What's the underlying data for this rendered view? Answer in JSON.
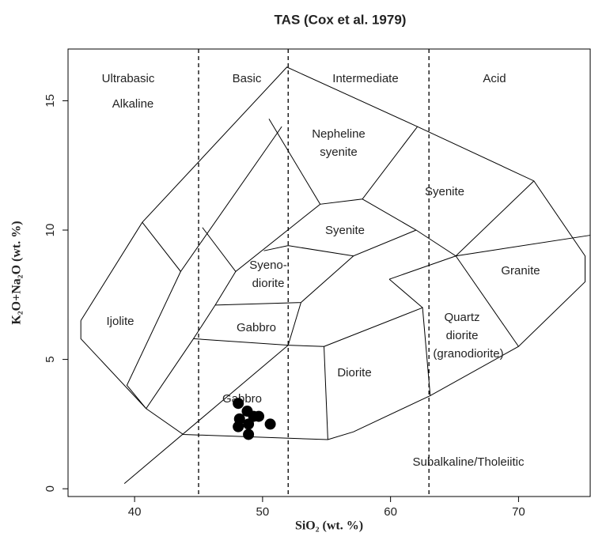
{
  "chart_data": {
    "type": "scatter",
    "title": "TAS (Cox et al. 1979)",
    "xlabel": "SiO₂ (wt. %)",
    "ylabel": "K₂O+Na₂O (wt. %)",
    "xlim": [
      34.8,
      75.6
    ],
    "ylim": [
      -0.3,
      17
    ],
    "xticks": [
      40,
      50,
      60,
      70
    ],
    "yticks": [
      0,
      5,
      10,
      15
    ],
    "color": "#000000",
    "x": [
      48.1,
      48.8,
      49.3,
      48.2,
      48.9,
      49.7,
      50.6,
      48.1,
      48.9
    ],
    "values": [
      3.3,
      3.0,
      2.8,
      2.7,
      2.5,
      2.8,
      2.5,
      2.4,
      2.1
    ],
    "divisions": [
      45,
      52,
      63
    ],
    "boundaries": [
      [
        [
          35.8,
          6.5
        ],
        [
          40.6,
          10.3
        ],
        [
          51.9,
          16.3
        ],
        [
          62.1,
          14.0
        ],
        [
          71.2,
          11.9
        ],
        [
          75.2,
          9.0
        ],
        [
          75.2,
          8.0
        ],
        [
          70.0,
          5.5
        ],
        [
          63.1,
          3.6
        ],
        [
          57.1,
          2.2
        ],
        [
          55.1,
          1.9
        ],
        [
          43.8,
          2.1
        ],
        [
          40.9,
          3.1
        ],
        [
          35.8,
          5.8
        ],
        [
          35.8,
          6.5
        ]
      ],
      [
        [
          40.6,
          10.3
        ],
        [
          43.6,
          8.4
        ],
        [
          51.5,
          14.0
        ]
      ],
      [
        [
          43.6,
          8.4
        ],
        [
          39.4,
          4.0
        ],
        [
          40.9,
          3.1
        ]
      ],
      [
        [
          45.3,
          10.1
        ],
        [
          47.9,
          8.4
        ],
        [
          54.5,
          11.0
        ],
        [
          57.8,
          11.2
        ],
        [
          62.1,
          14.0
        ]
      ],
      [
        [
          50.5,
          14.3
        ],
        [
          54.5,
          11.0
        ]
      ],
      [
        [
          47.9,
          8.4
        ],
        [
          46.3,
          7.1
        ],
        [
          44.6,
          5.8
        ],
        [
          40.9,
          3.1
        ]
      ],
      [
        [
          57.8,
          11.2
        ],
        [
          62.0,
          10.0
        ],
        [
          65.1,
          9.0
        ],
        [
          71.2,
          11.9
        ]
      ],
      [
        [
          50.1,
          9.2
        ],
        [
          52.0,
          9.4
        ],
        [
          57.1,
          9.0
        ],
        [
          62.0,
          10.0
        ]
      ],
      [
        [
          57.1,
          9.0
        ],
        [
          53.0,
          7.2
        ],
        [
          46.3,
          7.1
        ]
      ],
      [
        [
          53.0,
          7.2
        ],
        [
          52.0,
          5.55
        ],
        [
          44.6,
          5.8
        ]
      ],
      [
        [
          52.0,
          5.55
        ],
        [
          54.8,
          5.5
        ],
        [
          55.1,
          1.9
        ]
      ],
      [
        [
          54.8,
          5.5
        ],
        [
          62.5,
          7.0
        ],
        [
          63.1,
          3.6
        ]
      ],
      [
        [
          59.9,
          8.1
        ],
        [
          65.1,
          9.0
        ],
        [
          75.6,
          9.8
        ]
      ],
      [
        [
          62.5,
          7.0
        ],
        [
          59.9,
          8.1
        ]
      ],
      [
        [
          65.1,
          9.0
        ],
        [
          70.0,
          5.5
        ]
      ],
      [
        [
          39.2,
          0.2
        ],
        [
          52.0,
          5.55
        ]
      ]
    ],
    "annotations": [
      "Ultrabasic",
      "Alkaline",
      "Basic",
      "Intermediate",
      "Acid",
      "Nepheline",
      "syenite",
      "Syenite",
      "Syenite",
      "Syeno-",
      "diorite",
      "Granite",
      "Ijolite",
      "Gabbro",
      "Quartz",
      "diorite",
      "(granodiorite)",
      "Diorite",
      "Gabbro",
      "Subalkaline/Tholeiitic"
    ]
  }
}
